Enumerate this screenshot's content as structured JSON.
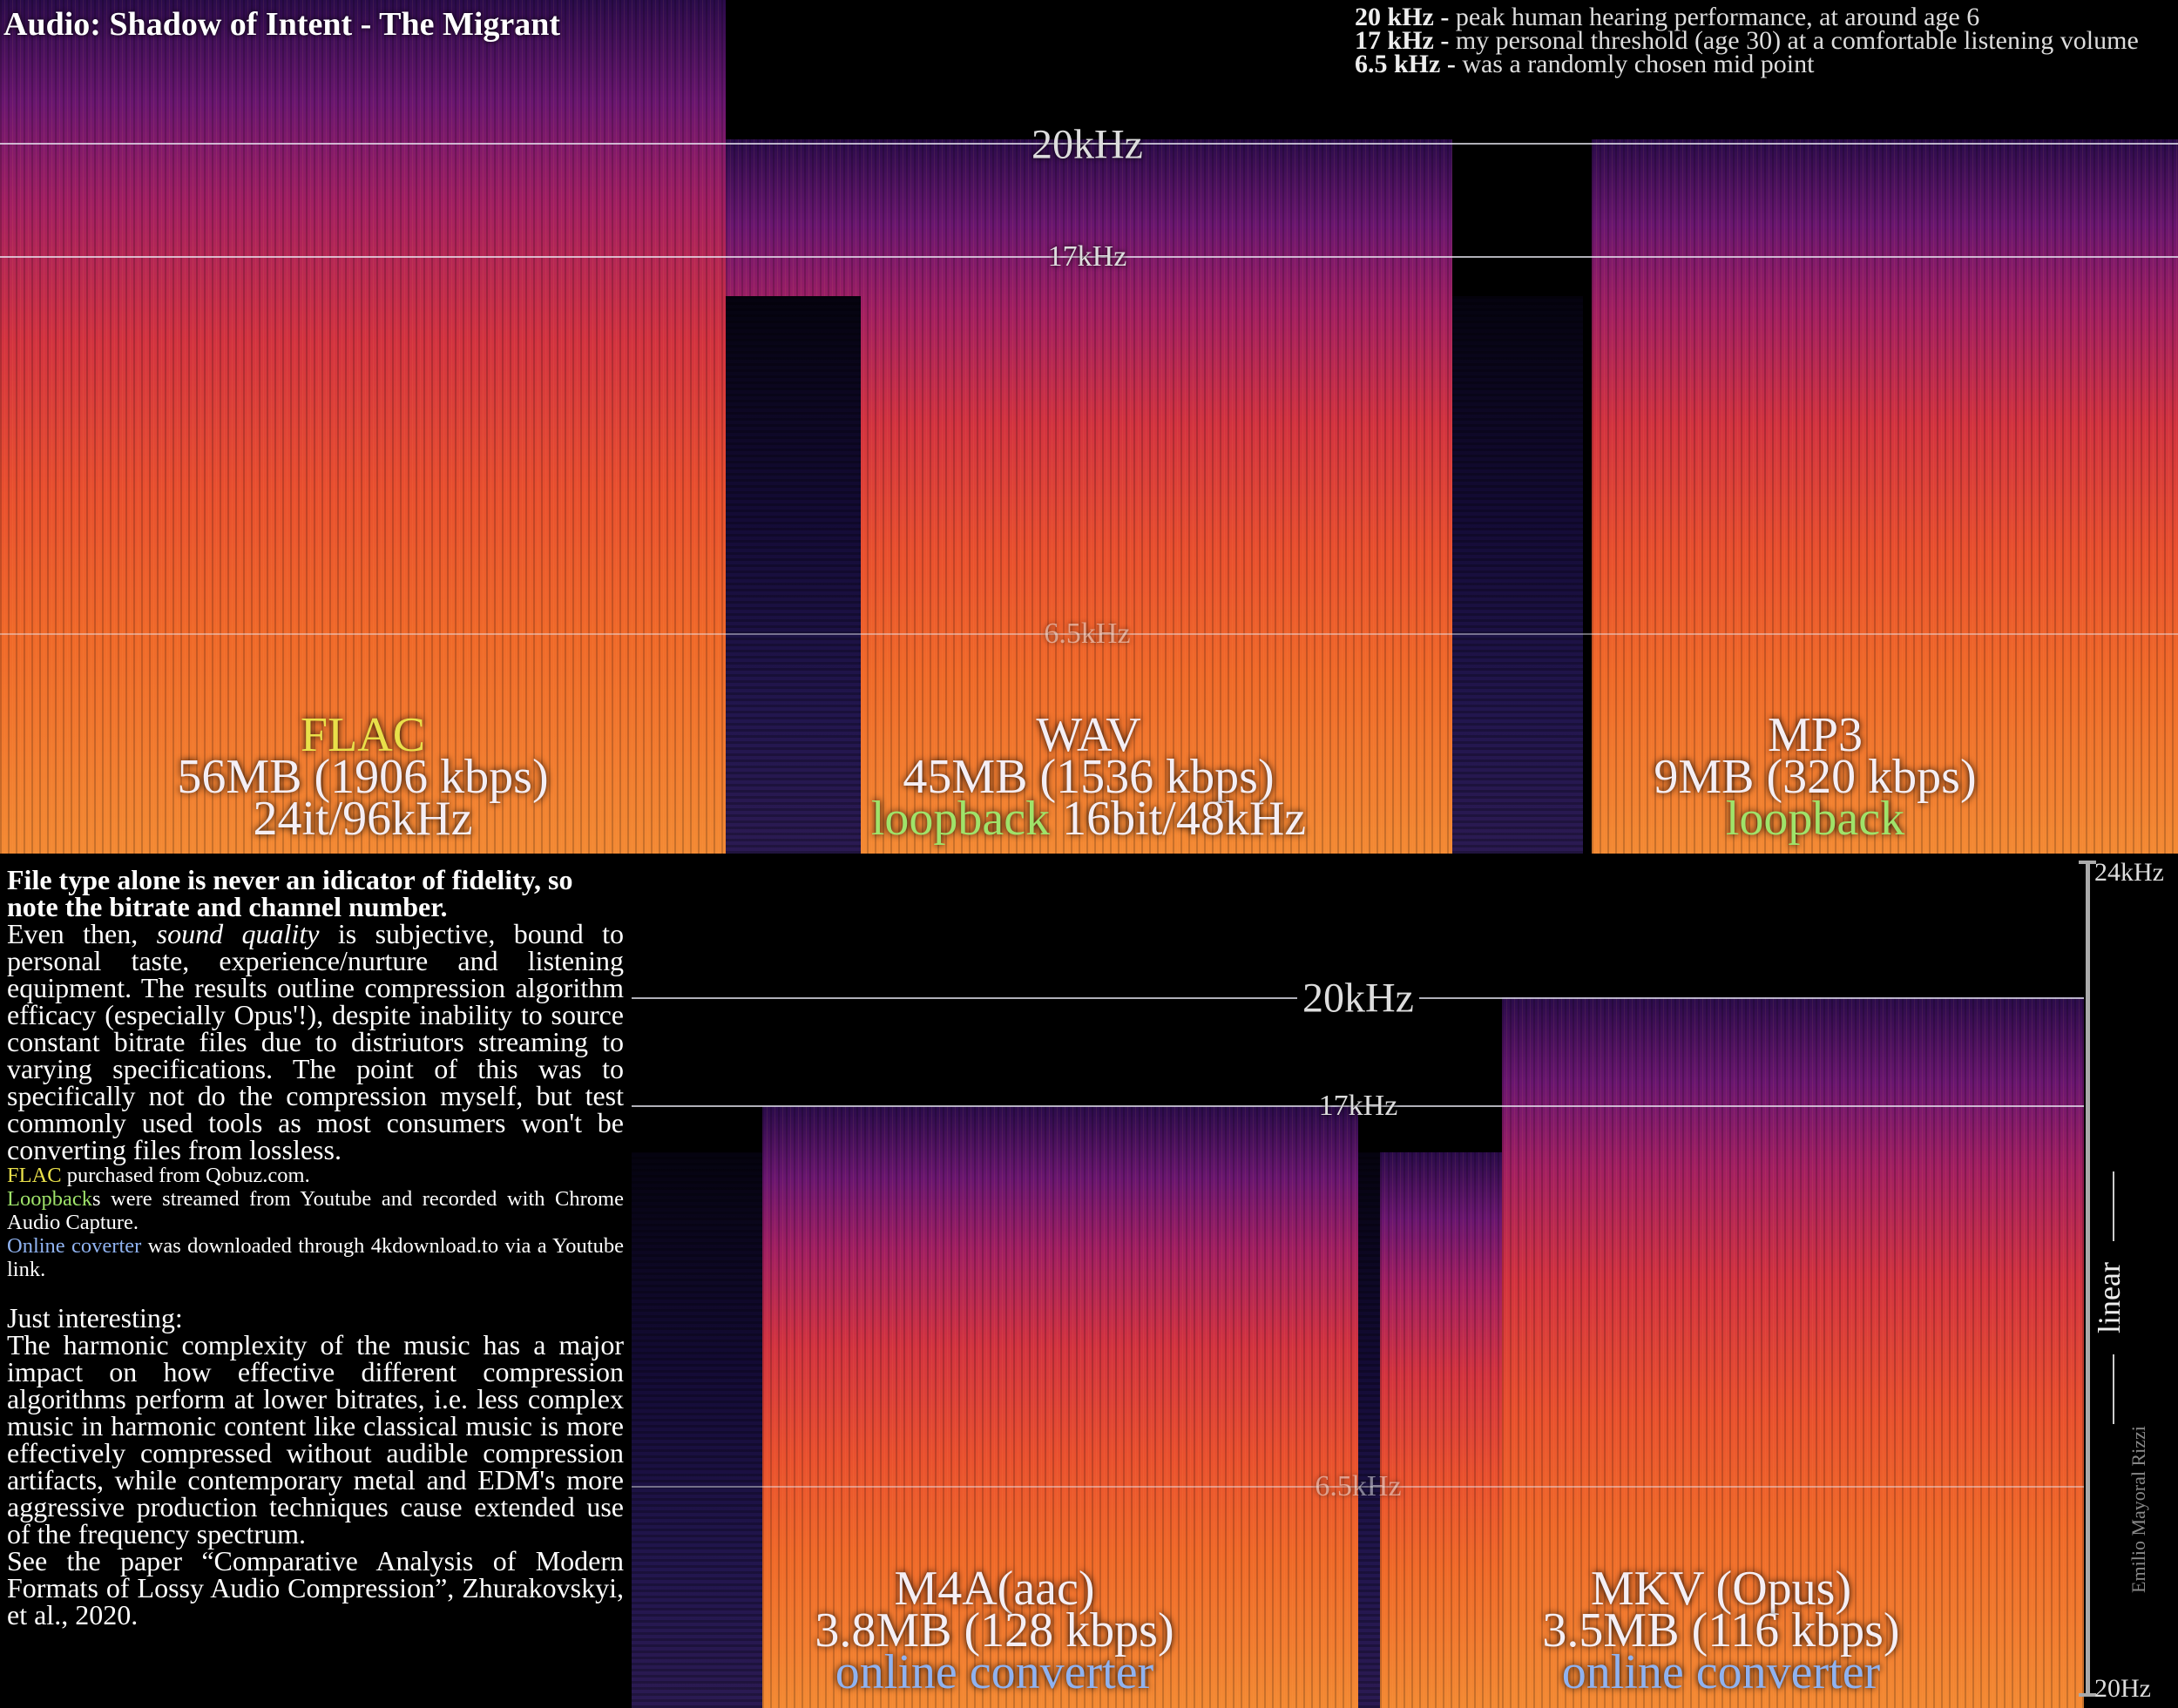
{
  "header": {
    "title": "Audio: Shadow of Intent - The Migrant",
    "notes": [
      {
        "key": "20 kHz -",
        "text": "peak human hearing performance, at around age 6"
      },
      {
        "key": "17 kHz -",
        "text": "my personal threshold (age 30) at a comfortable listening volume"
      },
      {
        "key": "6.5 kHz -",
        "text": "was a randomly chosen mid point"
      }
    ]
  },
  "frequency_lines": [
    "20kHz",
    "17kHz",
    "6.5kHz"
  ],
  "panels": [
    {
      "format": "FLAC",
      "size": "56MB (1906 kbps)",
      "spec": "24it/96kHz"
    },
    {
      "format": "WAV",
      "size": "45MB (1536 kbps)",
      "source": "loopback",
      "spec": "16bit/48kHz"
    },
    {
      "format": "MP3",
      "size": "9MB (320 kbps)",
      "source": "loopback"
    },
    {
      "format": "M4A(aac)",
      "size": "3.8MB (128 kbps)",
      "source": "online converter"
    },
    {
      "format": "MKV (Opus)",
      "size": "3.5MB (116 kbps)",
      "source": "online converter"
    }
  ],
  "text": {
    "heading": "File type alone is never an idicator of fidelity, so note the bitrate and channel number.",
    "intro": [
      "Even then, ",
      "sound quality",
      " is subjective, bound to personal taste, experience/nurture and listening equipment. The results outline compression algorithm efficacy (especially Opus'!), despite inability to source constant bitrate files due to distriutors streaming to varying specifications. The point of this was to specifically not do the compression myself, but test commonly used tools as most consumers won't be converting files from lossless."
    ],
    "sources": [
      [
        "FLAC",
        " purchased from Qobuz.com."
      ],
      [
        "Loopback",
        "s were streamed from Youtube and recorded with Chrome Audio Capture."
      ],
      [
        "Online coverter",
        " was downloaded through 4kdownload.to via a Youtube link."
      ]
    ],
    "aside_title": "Just interesting:",
    "aside": "The harmonic complexity of the music has a major impact on how effective different compression algorithms perform at lower bitrates, i.e. less complex music in harmonic content like classical music is more effectively compressed without audible compression artifacts, while contemporary metal and EDM's more aggressive production techniques cause extended use of the frequency spectrum.",
    "reference": "See the paper “Comparative Analysis of Modern Formats of Lossy Audio Compression”, Zhurakovskyi, et al., 2020."
  },
  "scale": {
    "top": "24kHz",
    "bottom": "20Hz",
    "mode": "linear"
  },
  "credit": "Emilio Mayoral Rizzi"
}
